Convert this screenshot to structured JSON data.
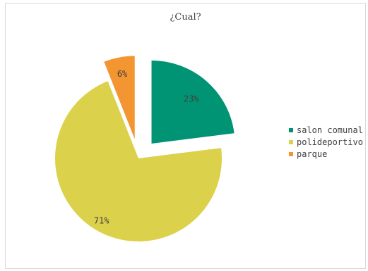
{
  "chart_data": {
    "type": "pie",
    "title": "¿Cual?",
    "exploded": true,
    "legend_position": "right",
    "slices": [
      {
        "label": "salon comunal",
        "value": 23,
        "display": "23%",
        "color": "#009474"
      },
      {
        "label": "polideportivo",
        "value": 71,
        "display": "71%",
        "color": "#DCD14A"
      },
      {
        "label": "parque",
        "value": 6,
        "display": "6%",
        "color": "#F39530"
      }
    ]
  }
}
